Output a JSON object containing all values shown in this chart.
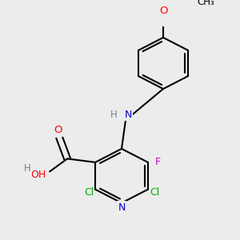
{
  "bg_color": "#ececec",
  "atom_colors": {
    "C": "#000000",
    "N": "#0000cd",
    "O": "#ff0000",
    "F": "#cc00cc",
    "Cl": "#00aa00",
    "H": "#708090"
  },
  "bond_color": "#000000",
  "bond_width": 1.5,
  "dbo": 0.015
}
